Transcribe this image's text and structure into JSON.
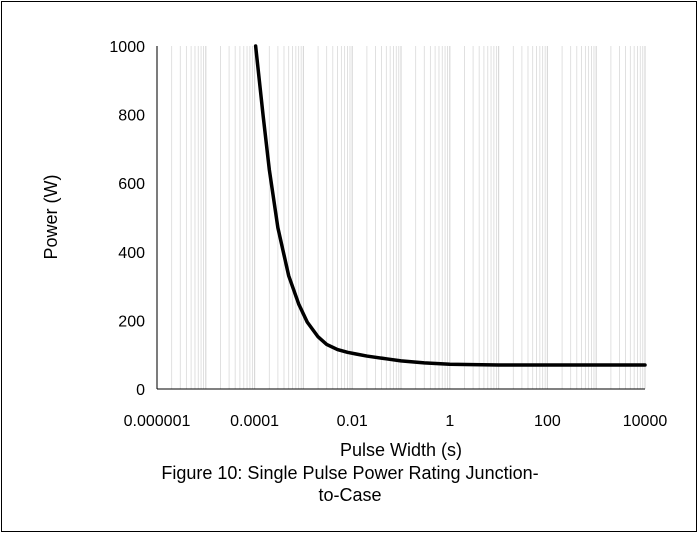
{
  "chart_data": {
    "type": "line",
    "xscale": "log",
    "xlabel": "Pulse Width (s)",
    "ylabel": "Power (W)",
    "xlim": [
      1e-06,
      10000
    ],
    "ylim": [
      0,
      1000
    ],
    "x_ticks": [
      "0.000001",
      "0.0001",
      "0.01",
      "1",
      "100",
      "10000"
    ],
    "y_ticks": [
      "0",
      "200",
      "400",
      "600",
      "800",
      "1000"
    ],
    "grid": {
      "x_minor": true,
      "y": false
    },
    "colors": {
      "line": "#000000",
      "grid": "#d9d9d9"
    },
    "series": [
      {
        "x": [
          0.000105,
          0.00015,
          0.0002,
          0.0003,
          0.0005,
          0.0008,
          0.0012,
          0.002,
          0.003,
          0.005,
          0.008,
          0.012,
          0.02,
          0.05,
          0.1,
          0.3,
          1,
          3,
          10,
          100,
          1000,
          10000
        ],
        "y": [
          1000,
          795,
          640,
          470,
          330,
          248,
          195,
          152,
          130,
          115,
          107,
          102,
          96,
          88,
          82,
          76,
          72,
          71,
          70,
          70,
          70,
          70
        ]
      }
    ]
  },
  "caption": {
    "line1": "Figure 10: Single Pulse Power Rating Junction-",
    "line2": "to-Case"
  }
}
